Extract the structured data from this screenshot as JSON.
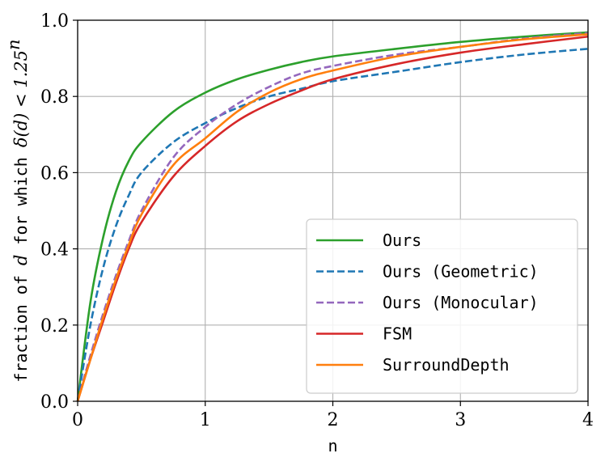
{
  "chart_data": {
    "type": "line",
    "title": "",
    "xlabel": "n",
    "ylabel": {
      "prefix": "fraction of ",
      "d": "d",
      "middle": " for which ",
      "math": "δ(d) < 1.25",
      "exp": "n"
    },
    "xlim": [
      0,
      4
    ],
    "ylim": [
      0,
      1.0
    ],
    "xticks": [
      "0",
      "1",
      "2",
      "3",
      "4"
    ],
    "yticks": [
      "0.0",
      "0.2",
      "0.4",
      "0.6",
      "0.8",
      "1.0"
    ],
    "grid": true,
    "legend_position": "lower-right",
    "x": [
      0,
      0.1,
      0.2,
      0.3,
      0.4,
      0.5,
      0.75,
      1.0,
      1.25,
      1.5,
      1.75,
      2.0,
      2.5,
      3.0,
      3.5,
      4.0
    ],
    "series": [
      {
        "name": "Ours",
        "color": "#2ca02c",
        "style": "solid",
        "values": [
          0.0,
          0.26,
          0.43,
          0.55,
          0.63,
          0.68,
          0.76,
          0.81,
          0.845,
          0.87,
          0.89,
          0.905,
          0.925,
          0.943,
          0.957,
          0.968
        ]
      },
      {
        "name": "Ours (Geometric)",
        "color": "#1f77b4",
        "style": "dashed",
        "values": [
          0.0,
          0.2,
          0.35,
          0.46,
          0.54,
          0.6,
          0.68,
          0.73,
          0.77,
          0.8,
          0.82,
          0.84,
          0.865,
          0.89,
          0.91,
          0.925
        ]
      },
      {
        "name": "Ours (Monocular)",
        "color": "#9467bd",
        "style": "dashed",
        "values": [
          0.0,
          0.12,
          0.23,
          0.33,
          0.42,
          0.5,
          0.64,
          0.72,
          0.78,
          0.825,
          0.86,
          0.88,
          0.91,
          0.93,
          0.952,
          0.966
        ]
      },
      {
        "name": "FSM",
        "color": "#d62728",
        "style": "solid",
        "values": [
          0.0,
          0.11,
          0.21,
          0.31,
          0.4,
          0.47,
          0.59,
          0.67,
          0.735,
          0.78,
          0.815,
          0.845,
          0.885,
          0.915,
          0.937,
          0.957
        ]
      },
      {
        "name": "SurroundDepth",
        "color": "#ff7f0e",
        "style": "solid",
        "values": [
          0.0,
          0.11,
          0.22,
          0.32,
          0.41,
          0.49,
          0.62,
          0.69,
          0.76,
          0.81,
          0.845,
          0.868,
          0.905,
          0.93,
          0.95,
          0.963
        ]
      }
    ]
  }
}
